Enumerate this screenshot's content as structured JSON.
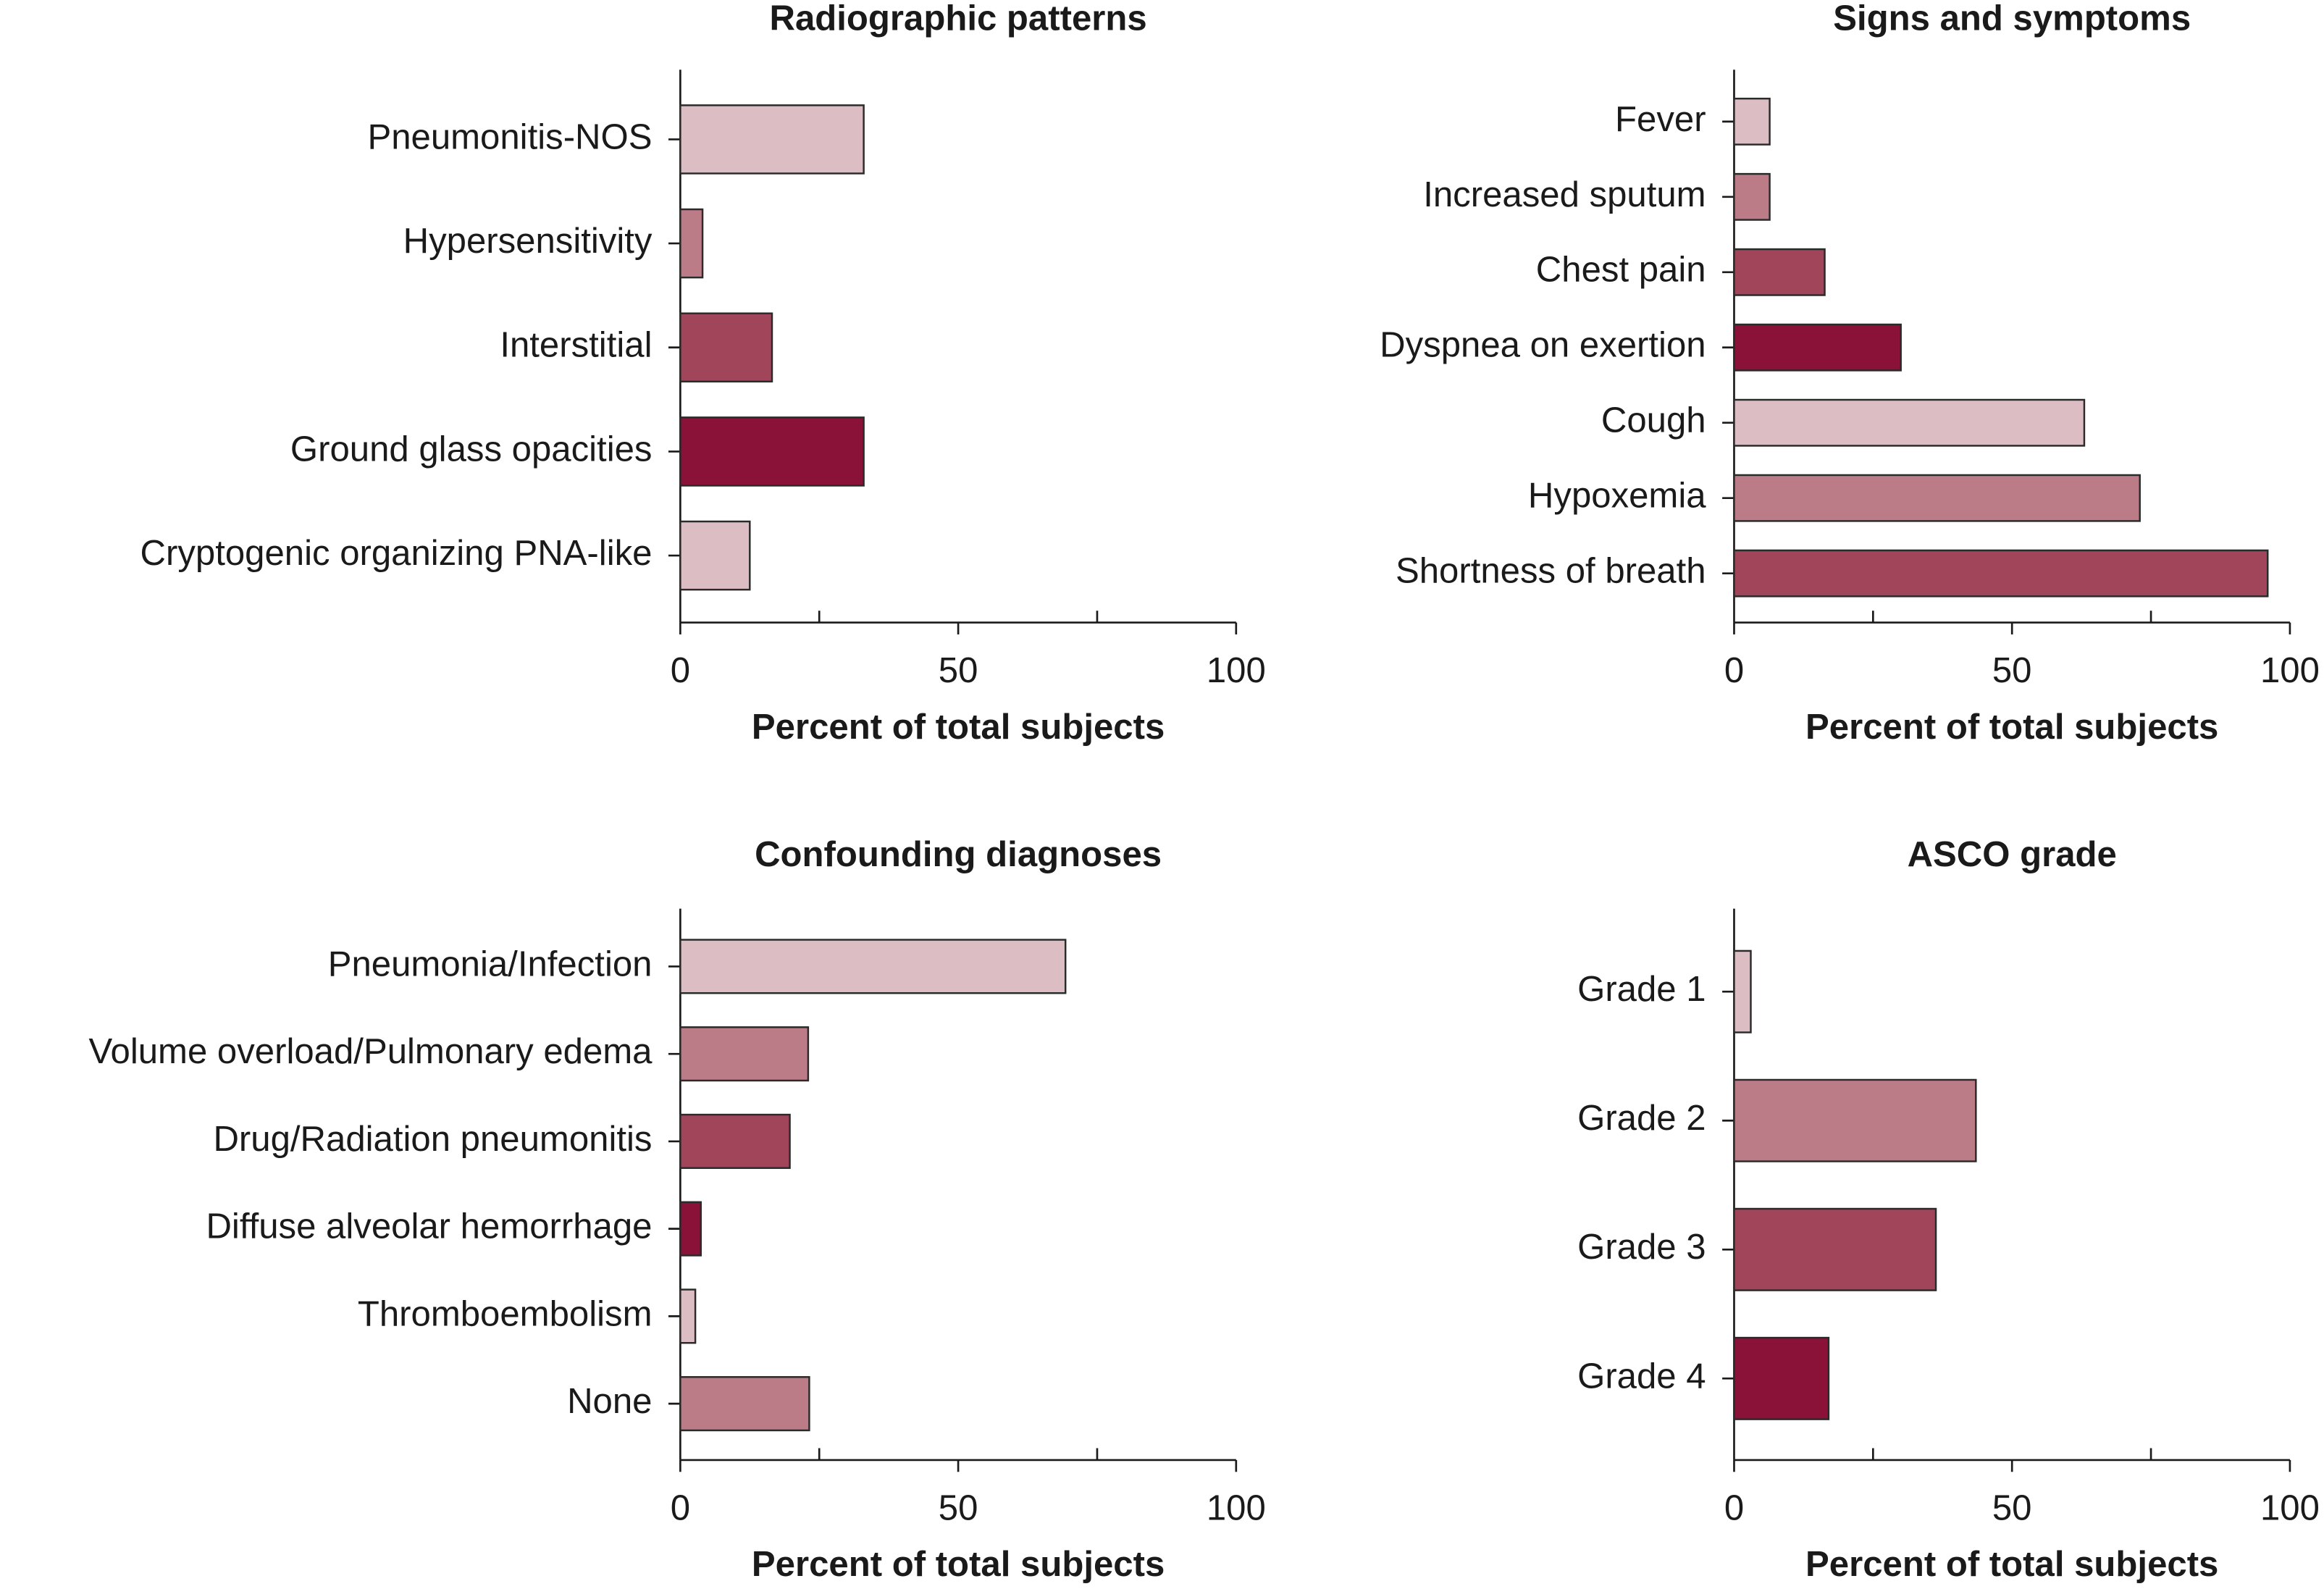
{
  "chart_data": [
    {
      "type": "bar",
      "orientation": "horizontal",
      "title": "Radiographic patterns",
      "xlabel": "Percent of total subjects",
      "categories": [
        "Pneumonitis-NOS",
        "Hypersensitivity",
        "Interstitial",
        "Ground glass opacities",
        "Cryptogenic organizing PNA-like"
      ],
      "values": [
        33,
        4,
        16.5,
        33,
        12.5
      ],
      "colors": [
        "#dcbdc3",
        "#bb7c87",
        "#a0455a",
        "#8a1138",
        "#dcbdc3"
      ],
      "xlim": [
        0,
        100
      ],
      "xticks": [
        0,
        50,
        100
      ],
      "xminorticks": [
        25,
        75
      ]
    },
    {
      "type": "bar",
      "orientation": "horizontal",
      "title": "Signs and symptoms",
      "xlabel": "Percent of total subjects",
      "categories": [
        "Fever",
        "Increased sputum",
        "Chest pain",
        "Dyspnea on exertion",
        "Cough",
        "Hypoxemia",
        "Shortness of breath"
      ],
      "values": [
        6.4,
        6.4,
        16.3,
        30,
        63,
        73,
        96
      ],
      "colors": [
        "#dcbdc3",
        "#bb7c87",
        "#a0455a",
        "#8a1138",
        "#dcbdc3",
        "#bb7c87",
        "#a0455a"
      ],
      "xlim": [
        0,
        100
      ],
      "xticks": [
        0,
        50,
        100
      ],
      "xminorticks": [
        25,
        75
      ]
    },
    {
      "type": "bar",
      "orientation": "horizontal",
      "title": "Confounding diagnoses",
      "xlabel": "Percent of total subjects",
      "categories": [
        "Pneumonia/Infection",
        "Volume overload/Pulmonary edema",
        "Drug/Radiation pneumonitis",
        "Diffuse alveolar hemorrhage",
        "Thromboembolism",
        "None"
      ],
      "values": [
        69.3,
        23,
        19.7,
        3.7,
        2.7,
        23.2
      ],
      "colors": [
        "#dcbdc3",
        "#bb7c87",
        "#a0455a",
        "#8a1138",
        "#dcbdc3",
        "#bb7c87"
      ],
      "xlim": [
        0,
        100
      ],
      "xticks": [
        0,
        50,
        100
      ],
      "xminorticks": [
        25,
        75
      ]
    },
    {
      "type": "bar",
      "orientation": "horizontal",
      "title": "ASCO grade",
      "xlabel": "Percent of total subjects",
      "categories": [
        "Grade 1",
        "Grade 2",
        "Grade 3",
        "Grade 4"
      ],
      "values": [
        3,
        43.5,
        36.3,
        17
      ],
      "colors": [
        "#dcbdc3",
        "#bb7c87",
        "#a0455a",
        "#8a1138"
      ],
      "xlim": [
        0,
        100
      ],
      "xticks": [
        0,
        50,
        100
      ],
      "xminorticks": [
        25,
        75
      ]
    }
  ]
}
